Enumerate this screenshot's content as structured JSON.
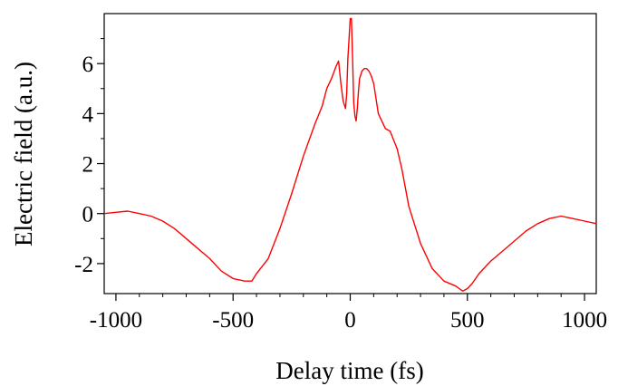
{
  "chart_data": {
    "type": "line",
    "title": "",
    "xlabel": "Delay time (fs)",
    "ylabel": "Electric field (a.u.)",
    "xlim": [
      -1050,
      1050
    ],
    "ylim": [
      -3.2,
      8.0
    ],
    "xticks": [
      -1000,
      -500,
      0,
      500,
      1000
    ],
    "xtick_labels": [
      "-1000",
      "-500",
      "0",
      "500",
      "1000"
    ],
    "yticks": [
      -2,
      0,
      2,
      4,
      6
    ],
    "ytick_labels": [
      "-2",
      "0",
      "2",
      "4",
      "6"
    ],
    "grid": false,
    "legend": "none",
    "series": [
      {
        "color": "#ff0000",
        "x": [
          -1050,
          -1000,
          -950,
          -900,
          -850,
          -800,
          -750,
          -700,
          -650,
          -600,
          -550,
          -500,
          -450,
          -420,
          -400,
          -350,
          -300,
          -250,
          -200,
          -150,
          -120,
          -100,
          -80,
          -60,
          -50,
          -40,
          -30,
          -20,
          -15,
          -10,
          0,
          5,
          10,
          15,
          20,
          25,
          30,
          35,
          40,
          50,
          60,
          70,
          80,
          90,
          100,
          120,
          150,
          170,
          200,
          220,
          250,
          300,
          350,
          400,
          450,
          480,
          500,
          520,
          550,
          600,
          650,
          700,
          750,
          800,
          850,
          900,
          950,
          1000,
          1050
        ],
        "y": [
          0.0,
          0.05,
          0.1,
          0.0,
          -0.1,
          -0.3,
          -0.6,
          -1.0,
          -1.4,
          -1.8,
          -2.3,
          -2.6,
          -2.7,
          -2.7,
          -2.4,
          -1.8,
          -0.6,
          0.8,
          2.3,
          3.6,
          4.3,
          5.0,
          5.4,
          5.9,
          6.1,
          5.2,
          4.5,
          4.2,
          4.8,
          6.2,
          7.8,
          7.8,
          6.2,
          4.4,
          3.9,
          3.7,
          4.2,
          4.9,
          5.4,
          5.7,
          5.8,
          5.8,
          5.7,
          5.5,
          5.2,
          4.0,
          3.4,
          3.3,
          2.6,
          1.8,
          0.3,
          -1.2,
          -2.2,
          -2.7,
          -2.9,
          -3.1,
          -3.0,
          -2.8,
          -2.4,
          -1.9,
          -1.5,
          -1.1,
          -0.7,
          -0.4,
          -0.2,
          -0.1,
          -0.2,
          -0.3,
          -0.4
        ]
      }
    ]
  }
}
